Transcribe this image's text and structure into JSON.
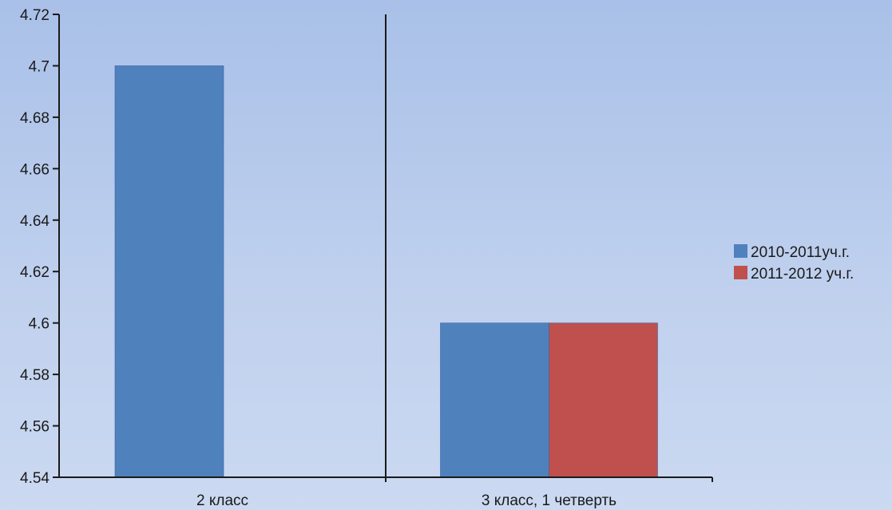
{
  "chart_data": {
    "type": "bar",
    "categories": [
      "2 класс",
      "3 класс, 1 четверть"
    ],
    "series": [
      {
        "name": "2010-2011уч.г.",
        "values": [
          4.7,
          4.6
        ],
        "color": "#4f81bd"
      },
      {
        "name": "2011-2012 уч.г.",
        "values": [
          null,
          4.6
        ],
        "color": "#c0504d"
      }
    ],
    "title": "",
    "xlabel": "",
    "ylabel": "",
    "ylim": [
      4.54,
      4.72
    ],
    "yticks": [
      "4.54",
      "4.56",
      "4.58",
      "4.6",
      "4.62",
      "4.64",
      "4.66",
      "4.68",
      "4.7",
      "4.72"
    ],
    "grid": false,
    "legend_position": "right"
  }
}
